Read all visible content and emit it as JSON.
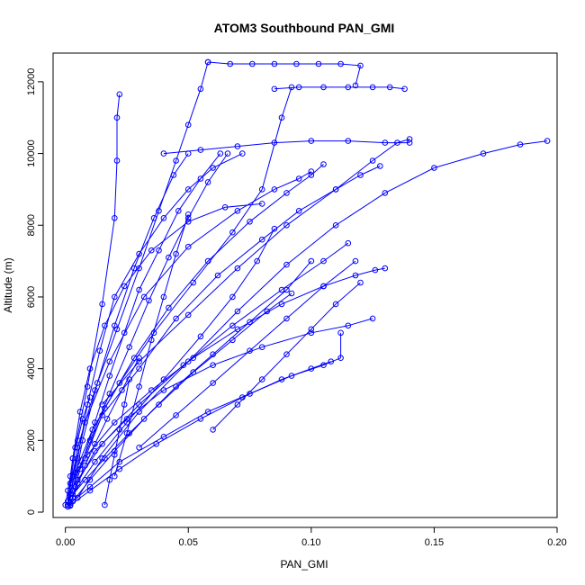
{
  "chart_data": {
    "type": "line",
    "title": "ATOM3 Southbound PAN_GMI",
    "xlabel": "PAN_GMI",
    "ylabel": "Altitude (m)",
    "xlim": [
      -0.005,
      0.2
    ],
    "ylim": [
      -150,
      12800
    ],
    "xticks": [
      0.0,
      0.05,
      0.1,
      0.15,
      0.2
    ],
    "xtick_labels": [
      "0.00",
      "0.05",
      "0.10",
      "0.15",
      "0.20"
    ],
    "yticks": [
      0,
      2000,
      4000,
      6000,
      8000,
      10000,
      12000
    ],
    "ytick_labels": [
      "0",
      "2000",
      "4000",
      "6000",
      "8000",
      "10000",
      "12000"
    ],
    "marker": "open-circle",
    "grid": false,
    "legend": "none",
    "series": [
      {
        "x": [
          0.002,
          0.006,
          0.012,
          0.018,
          0.024,
          0.03,
          0.038,
          0.046,
          0.055,
          0.063
        ],
        "y": [
          180,
          1200,
          2500,
          3800,
          5000,
          6200,
          7300,
          8400,
          9300,
          10000
        ]
      },
      {
        "x": [
          0.001,
          0.004,
          0.009,
          0.015,
          0.02,
          0.021,
          0.021,
          0.022
        ],
        "y": [
          200,
          1800,
          3500,
          5800,
          8200,
          9800,
          11000,
          11650
        ]
      },
      {
        "x": [
          0.003,
          0.01,
          0.02,
          0.032,
          0.045,
          0.06,
          0.075,
          0.09,
          0.1
        ],
        "y": [
          300,
          900,
          1700,
          2600,
          3500,
          4400,
          5300,
          6200,
          7000
        ]
      },
      {
        "x": [
          0.002,
          0.01,
          0.022,
          0.04,
          0.058,
          0.075,
          0.092,
          0.105,
          0.112,
          0.112
        ],
        "y": [
          250,
          700,
          1400,
          2100,
          2800,
          3300,
          3800,
          4100,
          4300,
          5000
        ]
      },
      {
        "x": [
          0.005,
          0.015,
          0.03,
          0.05,
          0.07,
          0.09,
          0.11,
          0.13,
          0.15,
          0.17,
          0.185,
          0.196
        ],
        "y": [
          400,
          1500,
          2800,
          4200,
          5600,
          6900,
          8000,
          8900,
          9600,
          10000,
          10250,
          10350
        ]
      },
      {
        "x": [
          0.003,
          0.008,
          0.018,
          0.032,
          0.05,
          0.07,
          0.085,
          0.095,
          0.1
        ],
        "y": [
          1000,
          2500,
          4200,
          6000,
          7400,
          8400,
          9000,
          9300,
          9500
        ]
      },
      {
        "x": [
          0.002,
          0.005,
          0.009,
          0.014,
          0.02,
          0.03,
          0.04,
          0.05,
          0.06,
          0.072
        ],
        "y": [
          500,
          1500,
          3000,
          4500,
          6000,
          7200,
          8200,
          9000,
          9600,
          10000
        ]
      },
      {
        "x": [
          0.004,
          0.012,
          0.025,
          0.04,
          0.06,
          0.08,
          0.1,
          0.115,
          0.125
        ],
        "y": [
          700,
          1700,
          2600,
          3400,
          4100,
          4600,
          5000,
          5200,
          5400
        ]
      },
      {
        "x": [
          0.001,
          0.006,
          0.015,
          0.03,
          0.045,
          0.062,
          0.08,
          0.095,
          0.11,
          0.12,
          0.128
        ],
        "y": [
          200,
          1300,
          2700,
          4000,
          5400,
          6600,
          7600,
          8400,
          9000,
          9400,
          9650
        ]
      },
      {
        "x": [
          0.001,
          0.003,
          0.006,
          0.01,
          0.016,
          0.024,
          0.035,
          0.05,
          0.065,
          0.08
        ],
        "y": [
          300,
          1500,
          2800,
          4000,
          5200,
          6300,
          7300,
          8100,
          8500,
          8600
        ]
      },
      {
        "x": [
          0.002,
          0.008,
          0.016,
          0.026,
          0.038,
          0.052,
          0.068,
          0.082,
          0.092
        ],
        "y": [
          400,
          900,
          1500,
          2200,
          3000,
          3900,
          4800,
          5600,
          6100
        ]
      },
      {
        "x": [
          0.003,
          0.007,
          0.013,
          0.02,
          0.028,
          0.036,
          0.044,
          0.05
        ],
        "y": [
          600,
          2000,
          3600,
          5200,
          6800,
          8200,
          9400,
          10000
        ]
      },
      {
        "x": [
          0.001,
          0.004,
          0.011,
          0.022,
          0.036,
          0.052,
          0.068,
          0.08,
          0.088,
          0.092
        ],
        "y": [
          200,
          1100,
          2300,
          3600,
          5000,
          6400,
          7800,
          9000,
          11000,
          11850
        ]
      },
      {
        "x": [
          0.002,
          0.009,
          0.02,
          0.035,
          0.052,
          0.07,
          0.088,
          0.105,
          0.118,
          0.126,
          0.13
        ],
        "y": [
          800,
          1600,
          2500,
          3400,
          4300,
          5100,
          5800,
          6300,
          6600,
          6750,
          6800
        ]
      },
      {
        "x": [
          0.001,
          0.005,
          0.012,
          0.021,
          0.03,
          0.038,
          0.045,
          0.05,
          0.055,
          0.058
        ],
        "y": [
          300,
          1800,
          3400,
          5100,
          6800,
          8400,
          9800,
          10800,
          11800,
          12550
        ]
      },
      {
        "x": [
          0.058,
          0.067,
          0.076,
          0.085,
          0.094,
          0.103,
          0.112,
          0.12,
          0.118
        ],
        "y": [
          12550,
          12500,
          12500,
          12500,
          12500,
          12500,
          12500,
          12450,
          11900
        ]
      },
      {
        "x": [
          0.008,
          0.016,
          0.028,
          0.042,
          0.058,
          0.075,
          0.09,
          0.1,
          0.105
        ],
        "y": [
          1500,
          2900,
          4300,
          5700,
          7000,
          8100,
          8900,
          9400,
          9700
        ]
      },
      {
        "x": [
          0.002,
          0.01,
          0.022,
          0.037,
          0.055,
          0.072,
          0.088,
          0.1,
          0.108
        ],
        "y": [
          200,
          600,
          1200,
          1900,
          2600,
          3200,
          3700,
          4000,
          4200
        ]
      },
      {
        "x": [
          0.01,
          0.018,
          0.026,
          0.034,
          0.042,
          0.05,
          0.058,
          0.066
        ],
        "y": [
          2000,
          3300,
          4600,
          5900,
          7100,
          8200,
          9200,
          10000
        ]
      },
      {
        "x": [
          0.015,
          0.03,
          0.05,
          0.07,
          0.09,
          0.11,
          0.125,
          0.135,
          0.14
        ],
        "y": [
          3000,
          4200,
          5500,
          6800,
          8000,
          9000,
          9800,
          10300,
          10400
        ]
      },
      {
        "x": [
          0.0,
          0.001,
          0.002,
          0.003,
          0.005,
          0.007,
          0.01
        ],
        "y": [
          200,
          600,
          1000,
          1500,
          2000,
          2600,
          3200
        ]
      },
      {
        "x": [
          0.001,
          0.003,
          0.005,
          0.008,
          0.012,
          0.017,
          0.023,
          0.03
        ],
        "y": [
          150,
          400,
          800,
          1300,
          1900,
          2600,
          3400,
          4300
        ]
      },
      {
        "x": [
          0.016,
          0.018,
          0.02,
          0.022,
          0.024,
          0.026
        ],
        "y": [
          200,
          900,
          1600,
          2300,
          3000,
          3700
        ]
      },
      {
        "x": [
          0.04,
          0.055,
          0.07,
          0.085,
          0.1,
          0.115,
          0.13,
          0.14
        ],
        "y": [
          10000,
          10100,
          10200,
          10300,
          10350,
          10350,
          10300,
          10300
        ]
      },
      {
        "x": [
          0.085,
          0.095,
          0.105,
          0.115,
          0.125,
          0.132,
          0.138
        ],
        "y": [
          11800,
          11850,
          11850,
          11850,
          11850,
          11850,
          11800
        ]
      },
      {
        "x": [
          0.005,
          0.015,
          0.03,
          0.048,
          0.068,
          0.088,
          0.105,
          0.115
        ],
        "y": [
          900,
          1900,
          3000,
          4100,
          5200,
          6200,
          7000,
          7500
        ]
      },
      {
        "x": [
          0.003,
          0.012,
          0.025,
          0.04,
          0.055,
          0.068,
          0.078,
          0.085
        ],
        "y": [
          500,
          1400,
          2500,
          3700,
          4900,
          6000,
          7000,
          7900
        ]
      },
      {
        "x": [
          0.02,
          0.025,
          0.03,
          0.035,
          0.04,
          0.045,
          0.05
        ],
        "y": [
          1000,
          2200,
          3500,
          4800,
          6000,
          7200,
          8300
        ]
      },
      {
        "x": [
          0.06,
          0.07,
          0.08,
          0.09,
          0.1,
          0.11,
          0.12
        ],
        "y": [
          2300,
          3000,
          3700,
          4400,
          5100,
          5800,
          6400
        ]
      },
      {
        "x": [
          0.03,
          0.045,
          0.06,
          0.075,
          0.09,
          0.105,
          0.118
        ],
        "y": [
          1800,
          2700,
          3600,
          4500,
          5400,
          6300,
          7000
        ]
      }
    ]
  }
}
